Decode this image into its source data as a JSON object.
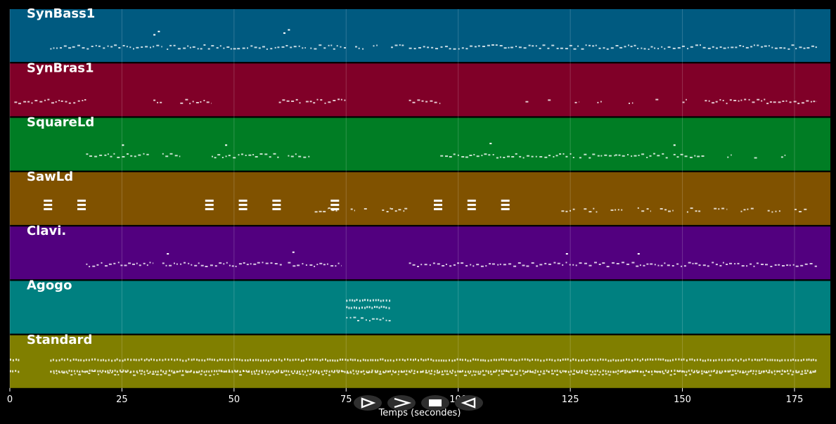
{
  "chart_data": {
    "type": "piano-roll",
    "xlabel": "Temps (secondes)",
    "xlim": [
      0,
      183
    ],
    "xticks": [
      0,
      25,
      50,
      75,
      100,
      125,
      150,
      175
    ],
    "grid": true,
    "tracks": [
      {
        "name": "SynBass1",
        "color": "#005a80",
        "segments": [
          [
            9,
            34
          ],
          [
            35,
            66
          ],
          [
            67,
            75
          ],
          [
            77,
            79
          ],
          [
            81,
            82
          ],
          [
            85,
            88
          ],
          [
            89,
            100
          ],
          [
            100,
            180
          ]
        ],
        "accents": [
          [
            32,
            0.85
          ],
          [
            33,
            0.95
          ],
          [
            61,
            0.9
          ],
          [
            62,
            1.0
          ]
        ]
      },
      {
        "name": "SynBras1",
        "color": "#800028",
        "segments": [
          [
            1,
            17
          ],
          [
            32,
            34
          ],
          [
            38,
            45
          ],
          [
            60,
            65
          ],
          [
            66,
            75
          ],
          [
            89,
            96
          ],
          [
            115,
            116
          ],
          [
            120,
            121
          ],
          [
            126,
            127
          ],
          [
            131,
            132
          ],
          [
            138,
            139
          ],
          [
            144,
            145
          ],
          [
            150,
            151
          ],
          [
            155,
            180
          ]
        ],
        "accents": []
      },
      {
        "name": "SquareLd",
        "color": "#007d24",
        "segments": [
          [
            17,
            31
          ],
          [
            34,
            38
          ],
          [
            45,
            60
          ],
          [
            62,
            67
          ],
          [
            96,
            126
          ],
          [
            127,
            135
          ],
          [
            135,
            147
          ],
          [
            148,
            155
          ],
          [
            160,
            161
          ],
          [
            166,
            167
          ],
          [
            172,
            173
          ]
        ],
        "accents": [
          [
            25,
            0.8
          ],
          [
            48,
            0.8
          ],
          [
            107,
            0.85
          ],
          [
            148,
            0.8
          ]
        ]
      },
      {
        "name": "SawLd",
        "color": "#805200",
        "segments": [
          [
            68,
            71
          ],
          [
            71,
            73
          ],
          [
            76,
            77
          ],
          [
            79,
            80
          ],
          [
            83,
            85
          ],
          [
            85,
            88
          ],
          [
            88,
            89
          ],
          [
            123,
            126
          ],
          [
            128,
            131
          ],
          [
            134,
            137
          ],
          [
            140,
            143
          ],
          [
            145,
            148
          ],
          [
            151,
            154
          ],
          [
            157,
            160
          ],
          [
            163,
            166
          ],
          [
            169,
            172
          ],
          [
            175,
            178
          ]
        ],
        "blocks": [
          8.5,
          16,
          44.5,
          52,
          59.5,
          72.5,
          95.5,
          103,
          110.5
        ],
        "accents": []
      },
      {
        "name": "Clavi.",
        "color": "#52007f",
        "segments": [
          [
            17,
            32
          ],
          [
            34,
            61
          ],
          [
            62,
            74
          ],
          [
            89,
            180
          ]
        ],
        "accents": [
          [
            35,
            0.8
          ],
          [
            63,
            0.85
          ],
          [
            124,
            0.8
          ],
          [
            140,
            0.8
          ]
        ]
      },
      {
        "name": "Agogo",
        "color": "#008080",
        "segments": [
          [
            75,
            85
          ]
        ],
        "accents": [],
        "low_segments": [
          [
            75,
            85
          ]
        ]
      },
      {
        "name": "Standard",
        "color": "#807f00",
        "segments": [
          [
            9,
            180
          ]
        ],
        "accents": [],
        "low_segments": [
          [
            0,
            2
          ],
          [
            9,
            180
          ]
        ]
      }
    ]
  },
  "controls": {
    "labels": [
      "play",
      "fast-forward",
      "stop",
      "rewind"
    ]
  }
}
